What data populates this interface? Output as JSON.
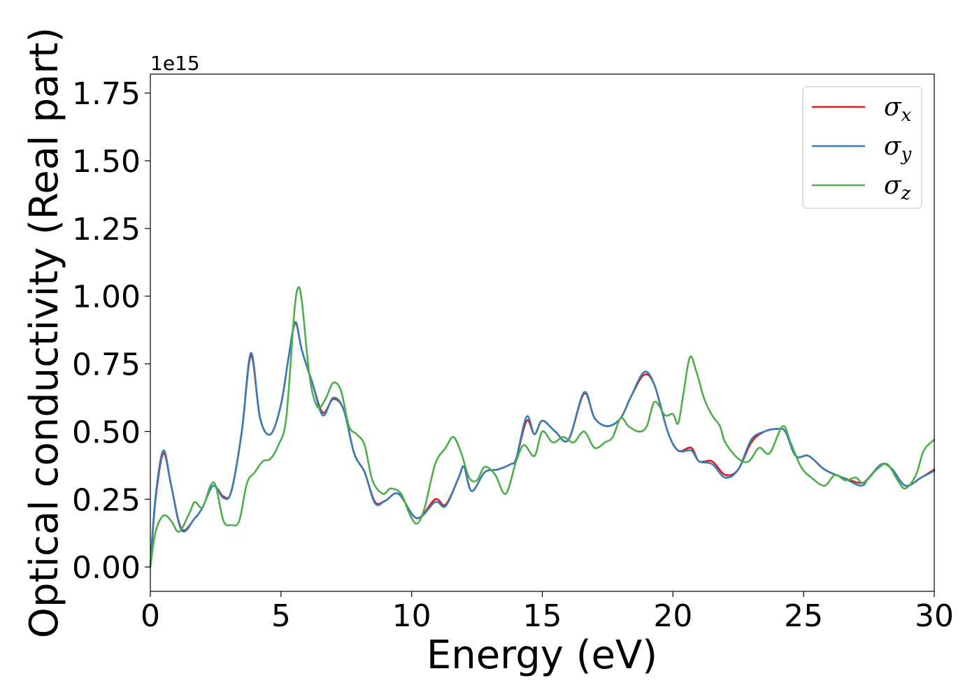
{
  "chart_data": {
    "type": "line",
    "xlabel": "Energy (eV)",
    "ylabel": "Optical conductivity (Real part)",
    "y_offset_label": "1e15",
    "xlim": [
      0,
      30
    ],
    "ylim": [
      -0.09,
      1.82
    ],
    "x_ticks": [
      0,
      5,
      10,
      15,
      20,
      25,
      30
    ],
    "x_tick_labels": [
      "0",
      "5",
      "10",
      "15",
      "20",
      "25",
      "30"
    ],
    "y_ticks": [
      0.0,
      0.25,
      0.5,
      0.75,
      1.0,
      1.25,
      1.5,
      1.75
    ],
    "y_tick_labels": [
      "0.00",
      "0.25",
      "0.50",
      "0.75",
      "1.00",
      "1.25",
      "1.50",
      "1.75"
    ],
    "grid": false,
    "legend_position": "top-right",
    "series": [
      {
        "name": "σx",
        "base": "σ",
        "sub": "x",
        "color": "#e41a1c",
        "points": [
          [
            0,
            0.0
          ],
          [
            0.2,
            0.25
          ],
          [
            0.5,
            0.42
          ],
          [
            0.8,
            0.3
          ],
          [
            1.2,
            0.14
          ],
          [
            1.7,
            0.18
          ],
          [
            2.0,
            0.22
          ],
          [
            2.4,
            0.3
          ],
          [
            2.8,
            0.26
          ],
          [
            3.1,
            0.28
          ],
          [
            3.5,
            0.5
          ],
          [
            3.85,
            0.78
          ],
          [
            4.2,
            0.55
          ],
          [
            4.6,
            0.49
          ],
          [
            5.0,
            0.6
          ],
          [
            5.3,
            0.78
          ],
          [
            5.55,
            0.9
          ],
          [
            5.8,
            0.8
          ],
          [
            6.2,
            0.68
          ],
          [
            6.6,
            0.57
          ],
          [
            7.0,
            0.62
          ],
          [
            7.4,
            0.58
          ],
          [
            7.8,
            0.42
          ],
          [
            8.2,
            0.35
          ],
          [
            8.6,
            0.24
          ],
          [
            9.0,
            0.245
          ],
          [
            9.5,
            0.27
          ],
          [
            10.2,
            0.18
          ],
          [
            10.9,
            0.25
          ],
          [
            11.3,
            0.23
          ],
          [
            11.8,
            0.33
          ],
          [
            12.0,
            0.37
          ],
          [
            12.3,
            0.28
          ],
          [
            12.8,
            0.35
          ],
          [
            13.3,
            0.36
          ],
          [
            13.8,
            0.38
          ],
          [
            14.0,
            0.4
          ],
          [
            14.4,
            0.54
          ],
          [
            14.7,
            0.49
          ],
          [
            15.0,
            0.54
          ],
          [
            15.5,
            0.5
          ],
          [
            16.0,
            0.47
          ],
          [
            16.6,
            0.64
          ],
          [
            17.0,
            0.55
          ],
          [
            17.5,
            0.52
          ],
          [
            18.0,
            0.55
          ],
          [
            18.4,
            0.63
          ],
          [
            18.9,
            0.71
          ],
          [
            19.3,
            0.67
          ],
          [
            19.8,
            0.5
          ],
          [
            20.2,
            0.43
          ],
          [
            20.7,
            0.44
          ],
          [
            21.0,
            0.39
          ],
          [
            21.5,
            0.39
          ],
          [
            22.0,
            0.34
          ],
          [
            22.5,
            0.36
          ],
          [
            23.0,
            0.46
          ],
          [
            23.5,
            0.5
          ],
          [
            24.0,
            0.51
          ],
          [
            24.3,
            0.5
          ],
          [
            24.7,
            0.41
          ],
          [
            25.2,
            0.41
          ],
          [
            25.8,
            0.36
          ],
          [
            26.5,
            0.33
          ],
          [
            27.2,
            0.31
          ],
          [
            27.5,
            0.33
          ],
          [
            28.0,
            0.38
          ],
          [
            28.4,
            0.36
          ],
          [
            28.9,
            0.3
          ],
          [
            29.5,
            0.33
          ],
          [
            30.0,
            0.36
          ]
        ]
      },
      {
        "name": "σy",
        "base": "σ",
        "sub": "y",
        "color": "#377eb8",
        "points": [
          [
            0,
            0.0
          ],
          [
            0.2,
            0.26
          ],
          [
            0.5,
            0.43
          ],
          [
            0.8,
            0.3
          ],
          [
            1.2,
            0.135
          ],
          [
            1.7,
            0.18
          ],
          [
            2.0,
            0.22
          ],
          [
            2.4,
            0.3
          ],
          [
            2.8,
            0.255
          ],
          [
            3.1,
            0.28
          ],
          [
            3.5,
            0.5
          ],
          [
            3.85,
            0.79
          ],
          [
            4.2,
            0.55
          ],
          [
            4.6,
            0.49
          ],
          [
            5.0,
            0.6
          ],
          [
            5.3,
            0.78
          ],
          [
            5.55,
            0.905
          ],
          [
            5.8,
            0.8
          ],
          [
            6.2,
            0.68
          ],
          [
            6.6,
            0.56
          ],
          [
            7.0,
            0.625
          ],
          [
            7.4,
            0.58
          ],
          [
            7.8,
            0.42
          ],
          [
            8.2,
            0.35
          ],
          [
            8.6,
            0.235
          ],
          [
            9.0,
            0.245
          ],
          [
            9.5,
            0.27
          ],
          [
            10.2,
            0.18
          ],
          [
            10.9,
            0.24
          ],
          [
            11.3,
            0.225
          ],
          [
            11.8,
            0.33
          ],
          [
            12.0,
            0.37
          ],
          [
            12.3,
            0.28
          ],
          [
            12.8,
            0.35
          ],
          [
            13.3,
            0.36
          ],
          [
            13.8,
            0.38
          ],
          [
            14.0,
            0.4
          ],
          [
            14.4,
            0.555
          ],
          [
            14.7,
            0.49
          ],
          [
            15.0,
            0.54
          ],
          [
            15.5,
            0.5
          ],
          [
            16.0,
            0.47
          ],
          [
            16.6,
            0.645
          ],
          [
            17.0,
            0.55
          ],
          [
            17.5,
            0.52
          ],
          [
            18.0,
            0.55
          ],
          [
            18.4,
            0.63
          ],
          [
            18.9,
            0.72
          ],
          [
            19.3,
            0.67
          ],
          [
            19.8,
            0.5
          ],
          [
            20.2,
            0.43
          ],
          [
            20.7,
            0.43
          ],
          [
            21.0,
            0.39
          ],
          [
            21.5,
            0.38
          ],
          [
            22.0,
            0.33
          ],
          [
            22.5,
            0.36
          ],
          [
            23.0,
            0.47
          ],
          [
            23.5,
            0.5
          ],
          [
            24.0,
            0.51
          ],
          [
            24.3,
            0.5
          ],
          [
            24.7,
            0.41
          ],
          [
            25.2,
            0.41
          ],
          [
            25.8,
            0.36
          ],
          [
            26.5,
            0.33
          ],
          [
            27.2,
            0.3
          ],
          [
            27.5,
            0.33
          ],
          [
            28.0,
            0.38
          ],
          [
            28.4,
            0.36
          ],
          [
            28.9,
            0.3
          ],
          [
            29.5,
            0.33
          ],
          [
            30.0,
            0.355
          ]
        ]
      },
      {
        "name": "σz",
        "base": "σ",
        "sub": "z",
        "color": "#4daf4a",
        "points": [
          [
            0,
            0.0
          ],
          [
            0.2,
            0.13
          ],
          [
            0.5,
            0.19
          ],
          [
            0.8,
            0.17
          ],
          [
            1.1,
            0.13
          ],
          [
            1.5,
            0.2
          ],
          [
            1.7,
            0.24
          ],
          [
            2.0,
            0.22
          ],
          [
            2.3,
            0.3
          ],
          [
            2.5,
            0.3
          ],
          [
            2.8,
            0.17
          ],
          [
            3.1,
            0.155
          ],
          [
            3.4,
            0.17
          ],
          [
            3.7,
            0.31
          ],
          [
            4.0,
            0.35
          ],
          [
            4.3,
            0.39
          ],
          [
            4.6,
            0.4
          ],
          [
            4.9,
            0.45
          ],
          [
            5.2,
            0.55
          ],
          [
            5.5,
            0.93
          ],
          [
            5.65,
            1.03
          ],
          [
            5.8,
            0.98
          ],
          [
            6.1,
            0.7
          ],
          [
            6.4,
            0.59
          ],
          [
            6.7,
            0.62
          ],
          [
            7.0,
            0.68
          ],
          [
            7.3,
            0.65
          ],
          [
            7.6,
            0.52
          ],
          [
            7.9,
            0.49
          ],
          [
            8.2,
            0.45
          ],
          [
            8.5,
            0.32
          ],
          [
            8.9,
            0.27
          ],
          [
            9.2,
            0.29
          ],
          [
            9.6,
            0.27
          ],
          [
            9.9,
            0.2
          ],
          [
            10.2,
            0.16
          ],
          [
            10.5,
            0.22
          ],
          [
            10.9,
            0.38
          ],
          [
            11.3,
            0.44
          ],
          [
            11.6,
            0.48
          ],
          [
            11.9,
            0.42
          ],
          [
            12.2,
            0.33
          ],
          [
            12.5,
            0.32
          ],
          [
            12.8,
            0.37
          ],
          [
            13.2,
            0.34
          ],
          [
            13.6,
            0.27
          ],
          [
            14.0,
            0.39
          ],
          [
            14.3,
            0.45
          ],
          [
            14.7,
            0.41
          ],
          [
            15.0,
            0.5
          ],
          [
            15.4,
            0.46
          ],
          [
            15.8,
            0.48
          ],
          [
            16.2,
            0.46
          ],
          [
            16.6,
            0.5
          ],
          [
            17.0,
            0.44
          ],
          [
            17.4,
            0.46
          ],
          [
            17.7,
            0.48
          ],
          [
            18.0,
            0.55
          ],
          [
            18.3,
            0.52
          ],
          [
            18.7,
            0.5
          ],
          [
            19.0,
            0.52
          ],
          [
            19.3,
            0.61
          ],
          [
            19.7,
            0.56
          ],
          [
            20.0,
            0.565
          ],
          [
            20.2,
            0.53
          ],
          [
            20.4,
            0.64
          ],
          [
            20.65,
            0.775
          ],
          [
            20.9,
            0.72
          ],
          [
            21.2,
            0.62
          ],
          [
            21.5,
            0.56
          ],
          [
            21.8,
            0.52
          ],
          [
            22.0,
            0.46
          ],
          [
            22.5,
            0.4
          ],
          [
            22.9,
            0.39
          ],
          [
            23.3,
            0.44
          ],
          [
            23.7,
            0.42
          ],
          [
            24.2,
            0.52
          ],
          [
            24.5,
            0.46
          ],
          [
            24.9,
            0.37
          ],
          [
            25.3,
            0.33
          ],
          [
            25.8,
            0.3
          ],
          [
            26.2,
            0.34
          ],
          [
            26.6,
            0.32
          ],
          [
            27.0,
            0.33
          ],
          [
            27.3,
            0.31
          ],
          [
            27.8,
            0.36
          ],
          [
            28.2,
            0.38
          ],
          [
            28.6,
            0.32
          ],
          [
            28.9,
            0.29
          ],
          [
            29.3,
            0.34
          ],
          [
            29.6,
            0.43
          ],
          [
            30.0,
            0.47
          ]
        ]
      }
    ]
  }
}
